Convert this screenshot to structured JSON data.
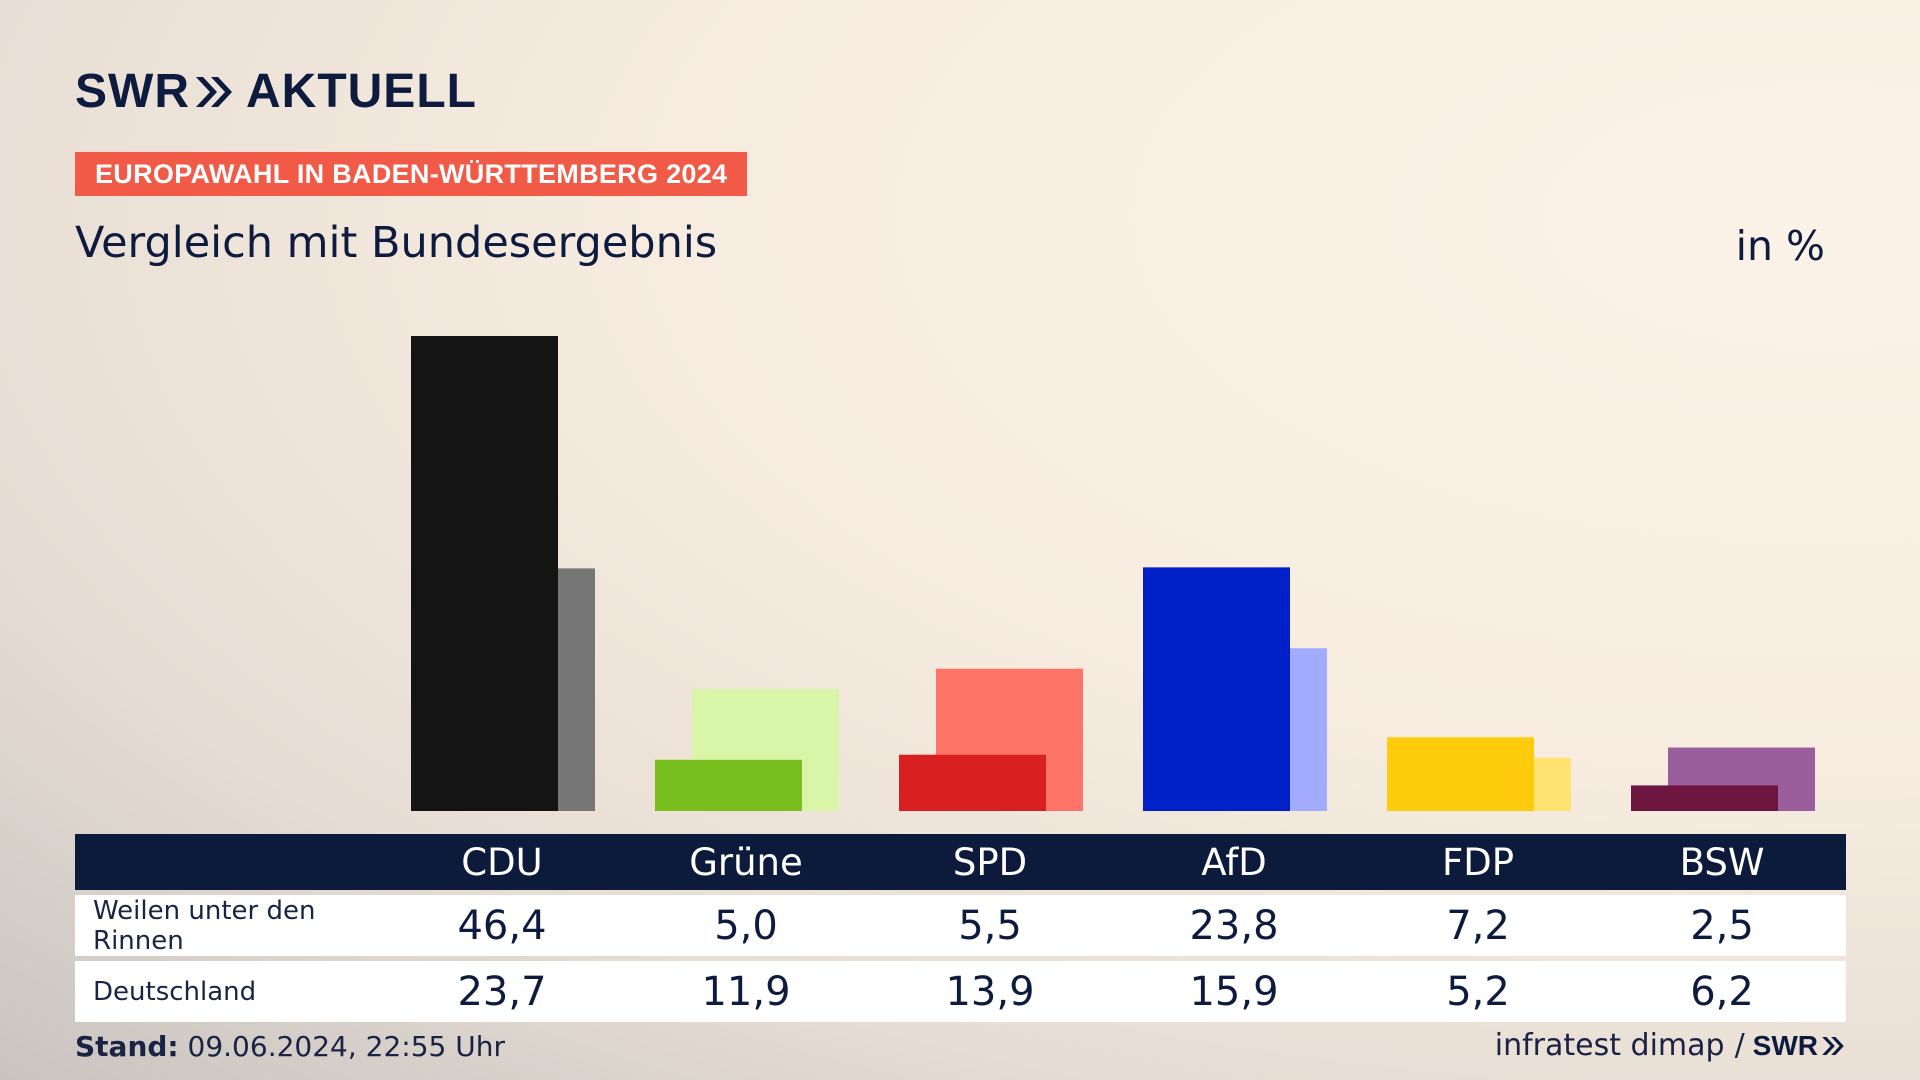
{
  "brand": {
    "swr": "SWR",
    "aktuell": "AKTUELL"
  },
  "badge": "EUROPAWAHL IN BADEN-WÜRTTEMBERG 2024",
  "subtitle": "Vergleich mit Bundesergebnis",
  "unit": "in %",
  "footer": {
    "stand_label": "Stand:",
    "stand_value": "09.06.2024, 22:55 Uhr",
    "source": "infratest dimap",
    "separator": "/",
    "logo": "SWR"
  },
  "table": {
    "rows": [
      {
        "label": "Weilen unter den Rinnen",
        "values": [
          "46,4",
          "5,0",
          "5,5",
          "23,8",
          "7,2",
          "2,5"
        ]
      },
      {
        "label": "Deutschland",
        "values": [
          "23,7",
          "11,9",
          "13,9",
          "15,9",
          "5,2",
          "6,2"
        ]
      }
    ]
  },
  "chart_data": {
    "type": "bar",
    "categories": [
      "CDU",
      "Grüne",
      "SPD",
      "AfD",
      "FDP",
      "BSW"
    ],
    "series": [
      {
        "name": "Weilen unter den Rinnen",
        "values": [
          46.4,
          5.0,
          5.5,
          23.8,
          7.2,
          2.5
        ]
      },
      {
        "name": "Deutschland",
        "values": [
          23.7,
          11.9,
          13.9,
          15.9,
          5.2,
          6.2
        ]
      }
    ],
    "colors": {
      "primary": [
        "#141414",
        "#78be1e",
        "#d7201f",
        "#0021c7",
        "#ffcc0d",
        "#6c1640"
      ],
      "comparison": [
        "#767676",
        "#d8f5a8",
        "#ff7469",
        "#a2acff",
        "#ffe372",
        "#9a5e9c"
      ]
    },
    "ylim": [
      0,
      46.4
    ],
    "grid": false,
    "legend": "table-below"
  }
}
